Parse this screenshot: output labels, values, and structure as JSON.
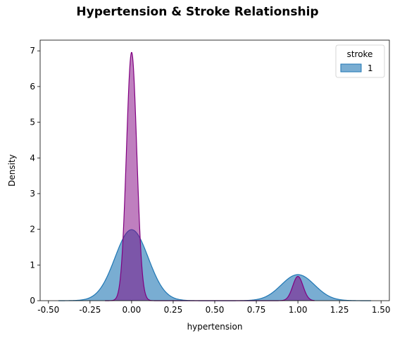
{
  "chart_data": {
    "type": "area",
    "title": "Hypertension & Stroke Relationship",
    "xlabel": "hypertension",
    "ylabel": "Density",
    "xlim": [
      -0.55,
      1.55
    ],
    "ylim": [
      0,
      7.3
    ],
    "x_ticks": [
      -0.5,
      -0.25,
      0.0,
      0.25,
      0.5,
      0.75,
      1.0,
      1.25,
      1.5
    ],
    "x_tick_labels": [
      "-0.50",
      "-0.25",
      "0.00",
      "0.25",
      "0.50",
      "0.75",
      "1.00",
      "1.25",
      "1.50"
    ],
    "y_ticks": [
      0,
      1,
      2,
      3,
      4,
      5,
      6,
      7
    ],
    "y_tick_labels": [
      "0",
      "1",
      "2",
      "3",
      "4",
      "5",
      "6",
      "7"
    ],
    "grid": false,
    "legend": {
      "title": "stroke",
      "placement": "top-right",
      "entries": [
        {
          "label": "1",
          "color": "#1f77b4"
        }
      ]
    },
    "series": [
      {
        "name": "1",
        "kind": "kde",
        "color": "#1f77b4",
        "fill_color": "#1f77b4",
        "fill_opacity": 0.6,
        "x_range": [
          -0.44,
          1.44
        ],
        "components": [
          {
            "center": 0.0,
            "peak": 1.99,
            "sd": 0.1
          },
          {
            "center": 1.0,
            "peak": 0.73,
            "sd": 0.1
          }
        ]
      },
      {
        "kind": "kde",
        "color": "#800080",
        "fill_color": "#800080",
        "fill_opacity": 0.5,
        "x_range": [
          -0.16,
          1.1
        ],
        "components": [
          {
            "center": 0.0,
            "peak": 6.96,
            "sd": 0.031
          },
          {
            "center": 1.0,
            "peak": 0.68,
            "sd": 0.031
          }
        ]
      }
    ]
  }
}
